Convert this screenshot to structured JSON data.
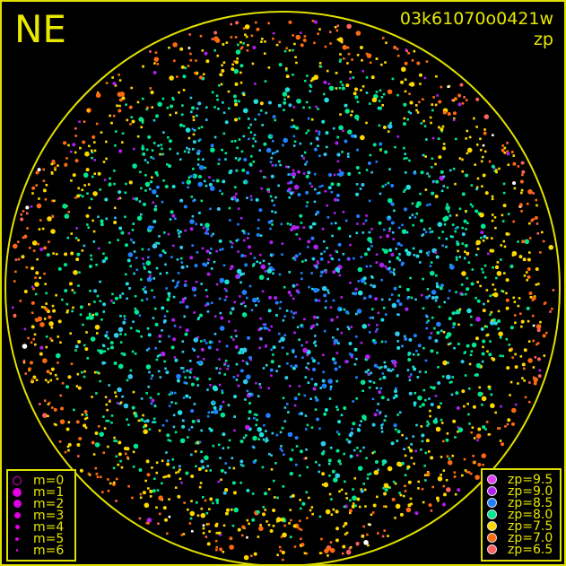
{
  "header": {
    "direction": "NE",
    "image_id": "03k61070o0421w",
    "mode": "zp"
  },
  "chart_data": {
    "type": "scatter",
    "title": "03k61070o0421w",
    "subtitle": "zp",
    "grid": false,
    "magnitude_legend": {
      "position": "bottom-left",
      "entries": [
        {
          "label": "m=0",
          "size": 5,
          "hollow": true
        },
        {
          "label": "m=1",
          "size": 5
        },
        {
          "label": "m=2",
          "size": 4.5
        },
        {
          "label": "m=3",
          "size": 3.5
        },
        {
          "label": "m=4",
          "size": 2.5
        },
        {
          "label": "m=5",
          "size": 2
        },
        {
          "label": "m=6",
          "size": 1.3
        }
      ]
    },
    "zp_legend": {
      "position": "bottom-right",
      "entries": [
        {
          "label": "zp=9.5",
          "zp": 9.5,
          "color": "#e040f0"
        },
        {
          "label": "zp=9.0",
          "zp": 9.0,
          "color": "#b020f0"
        },
        {
          "label": "zp=8.5",
          "zp": 8.5,
          "color": "#2080ff"
        },
        {
          "label": "zp=8.0",
          "zp": 8.0,
          "color": "#00e890"
        },
        {
          "label": "zp=7.5",
          "zp": 7.5,
          "color": "#ffd800"
        },
        {
          "label": "zp=7.0",
          "zp": 7.0,
          "color": "#ff6a10"
        },
        {
          "label": "zp=6.5",
          "zp": 6.5,
          "color": "#ff6060"
        }
      ]
    },
    "horizon_color": "#e0e000"
  }
}
